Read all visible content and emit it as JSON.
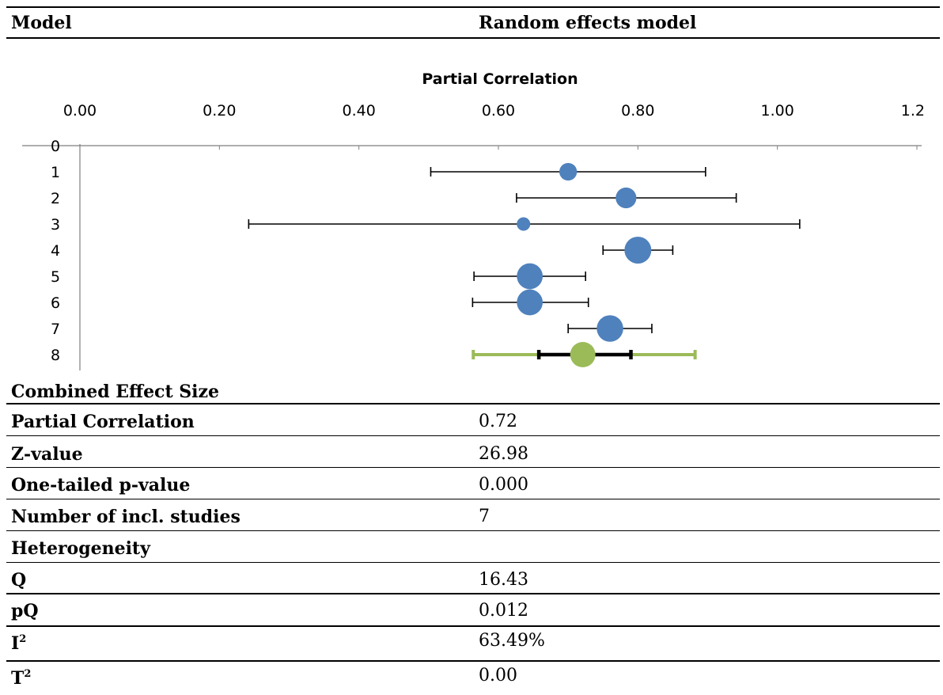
{
  "header": {
    "model_label": "Model",
    "model_value": "Random effects model"
  },
  "chart_data": {
    "type": "scatter",
    "title": "",
    "xlabel": "Partial Correlation",
    "ylabel": "",
    "xlim": [
      0,
      1.2
    ],
    "x_tick_labels": [
      "0.00",
      "0.20",
      "0.40",
      "0.60",
      "0.80",
      "1.00",
      "1.2"
    ],
    "y_tick_labels": [
      "0",
      "1",
      "2",
      "3",
      "4",
      "5",
      "6",
      "7",
      "8"
    ],
    "grid": false,
    "legend": "none",
    "colors": {
      "study": "#4f81bd",
      "combined": "#9bbb59",
      "ci": "#000000"
    },
    "studies": [
      {
        "row": 1,
        "effect": 0.7,
        "ci_low": 0.503,
        "ci_high": 0.897,
        "weight": 0.55
      },
      {
        "row": 2,
        "effect": 0.783,
        "ci_low": 0.626,
        "ci_high": 0.941,
        "weight": 0.7
      },
      {
        "row": 3,
        "effect": 0.636,
        "ci_low": 0.242,
        "ci_high": 1.032,
        "weight": 0.35
      },
      {
        "row": 4,
        "effect": 0.8,
        "ci_low": 0.75,
        "ci_high": 0.85,
        "weight": 1.0
      },
      {
        "row": 5,
        "effect": 0.645,
        "ci_low": 0.565,
        "ci_high": 0.725,
        "weight": 0.95
      },
      {
        "row": 6,
        "effect": 0.645,
        "ci_low": 0.563,
        "ci_high": 0.729,
        "weight": 0.95
      },
      {
        "row": 7,
        "effect": 0.76,
        "ci_low": 0.7,
        "ci_high": 0.82,
        "weight": 0.98
      }
    ],
    "combined": {
      "row": 8,
      "effect": 0.721,
      "ci_low": 0.658,
      "ci_high": 0.79,
      "pi_low": 0.564,
      "pi_high": 0.882
    }
  },
  "summary": {
    "combined_heading": "Combined Effect Size",
    "rows": [
      {
        "label": "Partial Correlation",
        "value": "0.72"
      },
      {
        "label": "Z-value",
        "value": "26.98"
      },
      {
        "label": "One-tailed p-value",
        "value": "0.000"
      },
      {
        "label": "Number of incl. studies",
        "value": "7"
      }
    ],
    "heterogeneity_heading": "Heterogeneity",
    "het_rows": [
      {
        "label": "Q",
        "value": "16.43"
      },
      {
        "label": "pQ",
        "value": "0.012"
      },
      {
        "label": "I",
        "sup": "2",
        "value": "63.49%"
      },
      {
        "label": "T",
        "sup": "2",
        "value": "0.00"
      }
    ]
  }
}
